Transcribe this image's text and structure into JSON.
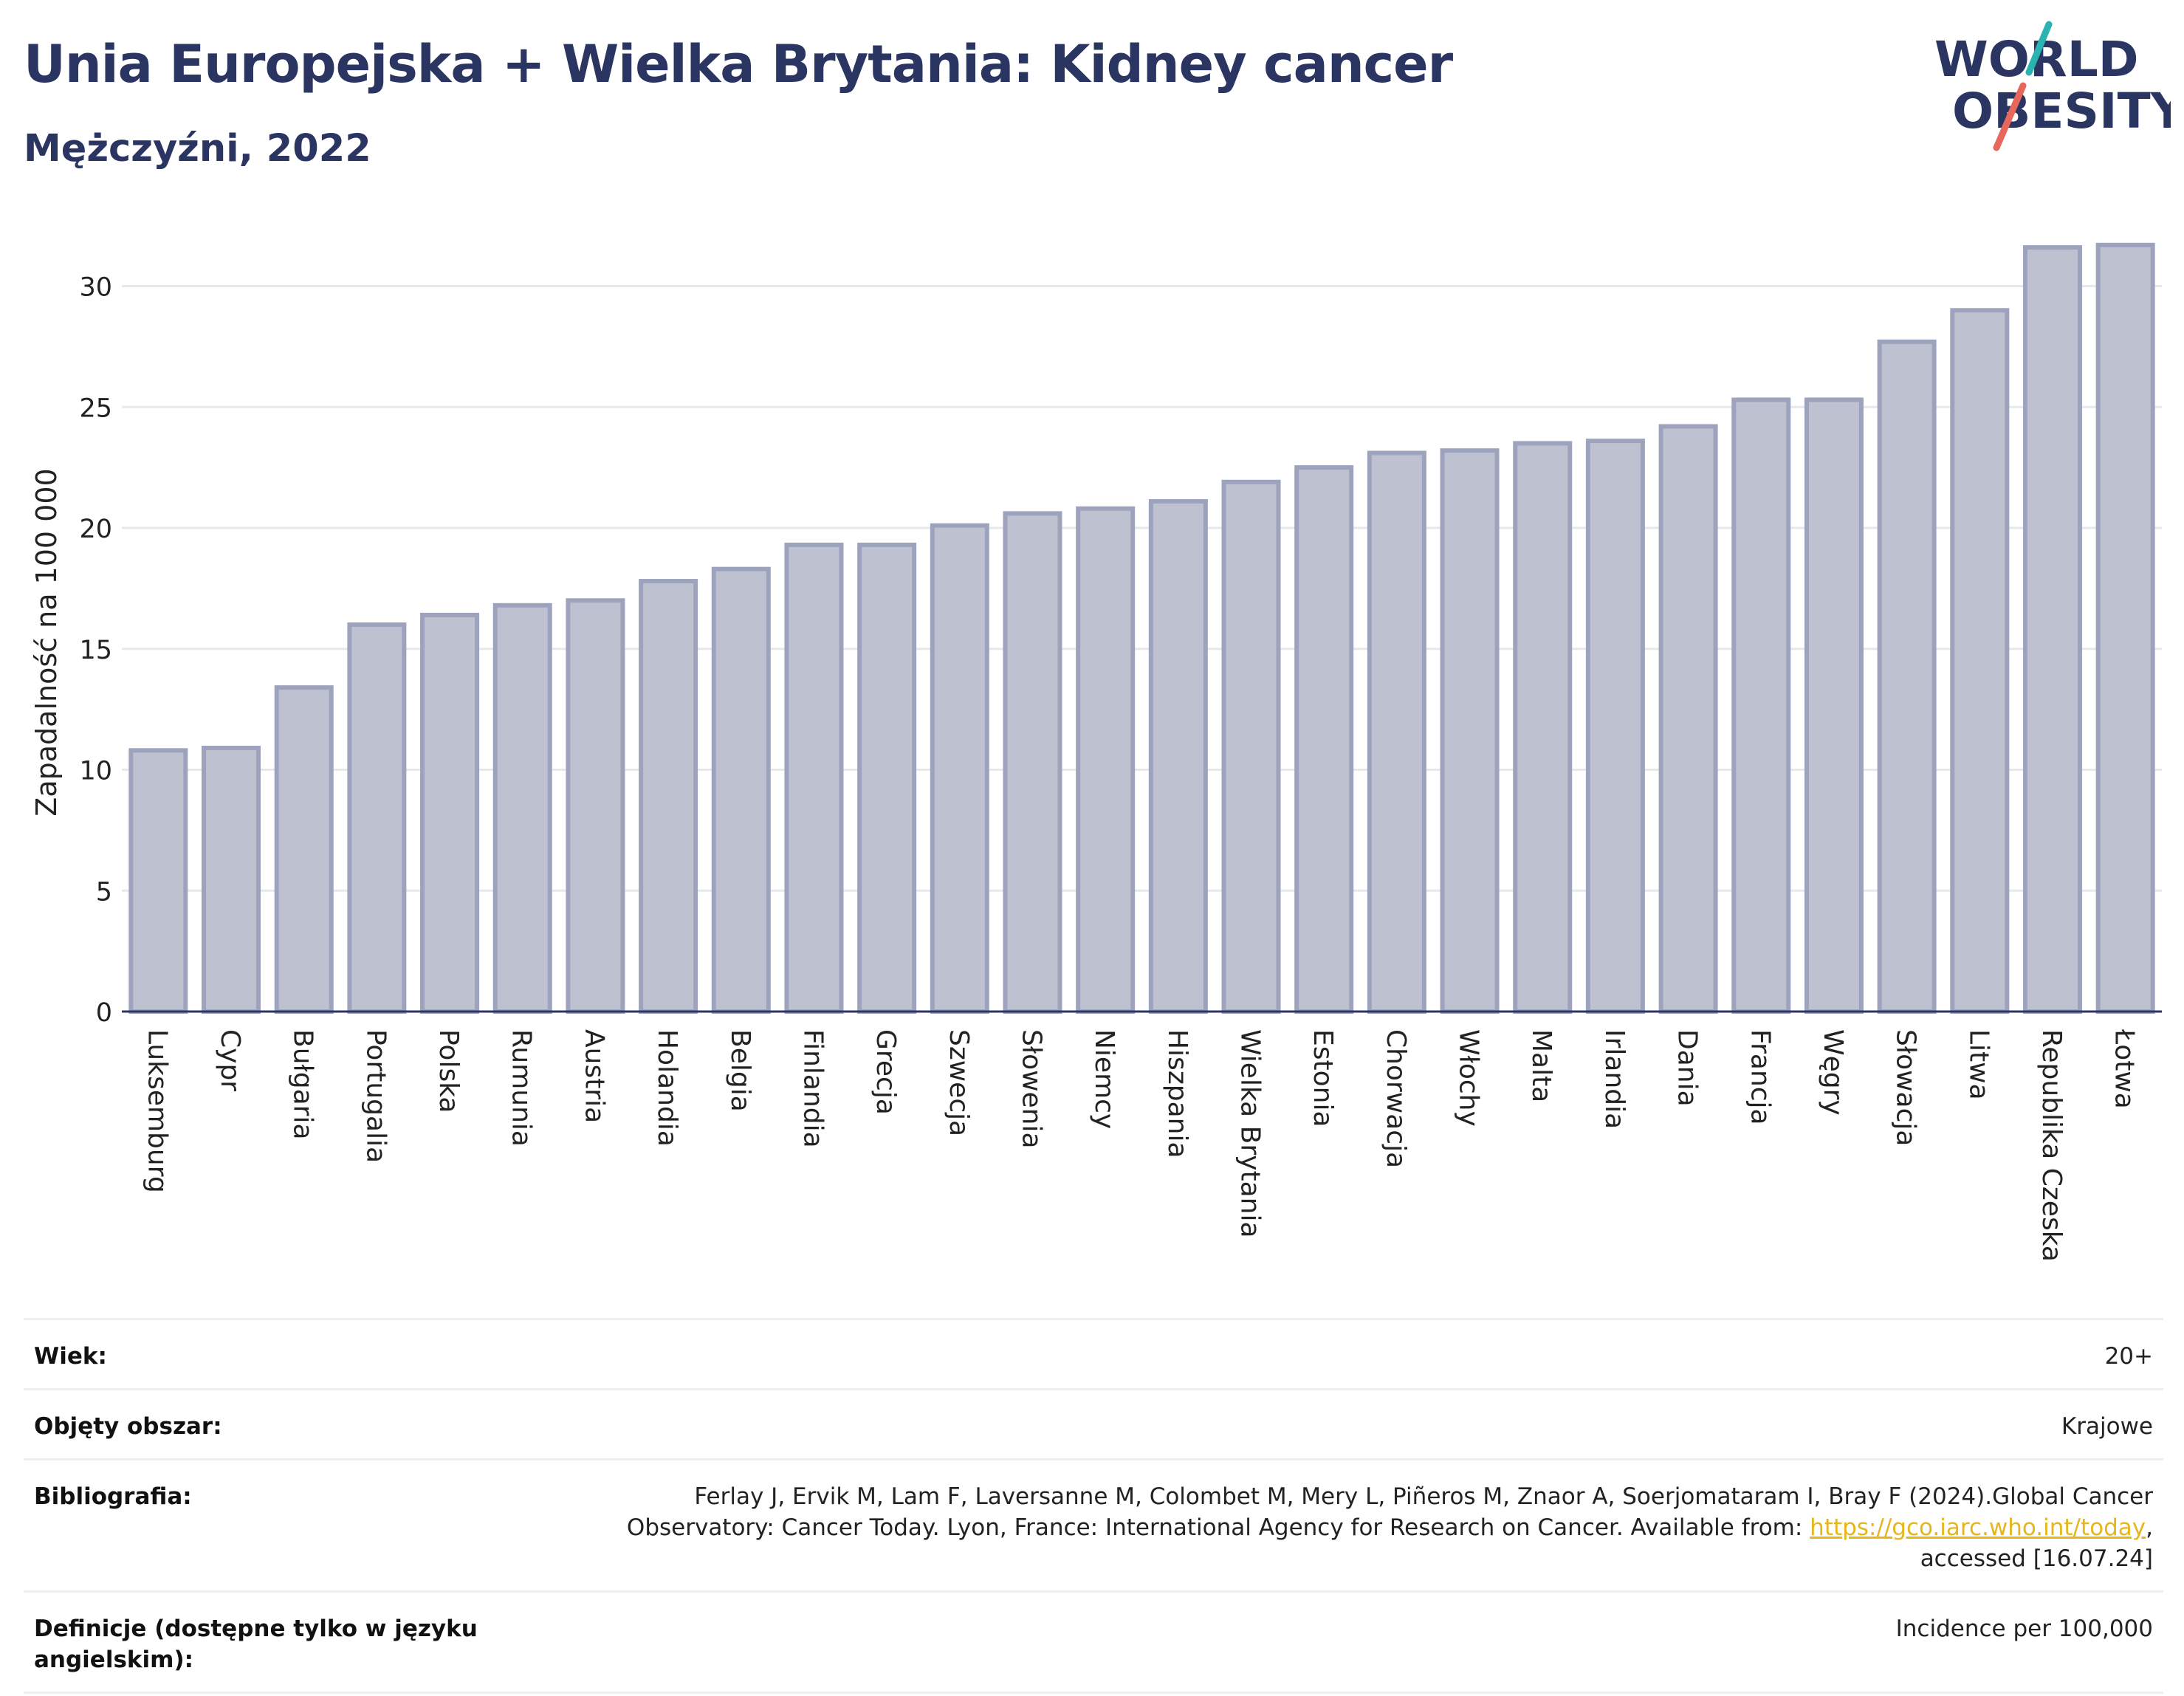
{
  "header": {
    "title": "Unia Europejska + Wielka Brytania: Kidney cancer",
    "subtitle": "Mężczyźni, 2022"
  },
  "logo": {
    "line1": "WORLD",
    "line2": "OBESITY",
    "colors": {
      "text": "#2b3561",
      "slash_top": "#2bb3b1",
      "slash_bottom": "#e8675b"
    }
  },
  "chart_data": {
    "type": "bar",
    "title": "Unia Europejska + Wielka Brytania: Kidney cancer",
    "subtitle": "Mężczyźni, 2022",
    "xlabel": "",
    "ylabel": "Zapadalność na 100 000",
    "ylim": [
      0,
      32
    ],
    "yticks": [
      0,
      5,
      10,
      15,
      20,
      25,
      30
    ],
    "grid": true,
    "bar_fill": "#bec1d0",
    "bar_stroke": "#9ea3bd",
    "categories": [
      "Luksemburg",
      "Cypr",
      "Bułgaria",
      "Portugalia",
      "Polska",
      "Rumunia",
      "Austria",
      "Holandia",
      "Belgia",
      "Finlandia",
      "Grecja",
      "Szwecja",
      "Słowenia",
      "Niemcy",
      "Hiszpania",
      "Wielka Brytania",
      "Estonia",
      "Chorwacja",
      "Włochy",
      "Malta",
      "Irlandia",
      "Dania",
      "Francja",
      "Węgry",
      "Słowacja",
      "Litwa",
      "Republika Czeska",
      "Łotwa"
    ],
    "values": [
      10.8,
      10.9,
      13.4,
      16.0,
      16.4,
      16.8,
      17.0,
      17.8,
      18.3,
      19.3,
      19.3,
      20.1,
      20.6,
      20.8,
      21.1,
      21.9,
      22.5,
      23.1,
      23.2,
      23.5,
      23.6,
      24.2,
      25.3,
      25.3,
      27.7,
      29.0,
      31.6,
      31.7
    ]
  },
  "meta": {
    "rows": [
      {
        "label": "Wiek:",
        "value": "20+"
      },
      {
        "label": "Objęty obszar:",
        "value": "Krajowe"
      },
      {
        "label": "Bibliografia:",
        "value_line1": "Ferlay J, Ervik M, Lam F, Laversanne M, Colombet M, Mery L, Piñeros M, Znaor A, Soerjomataram I, Bray F (2024).Global Cancer",
        "value_line2_pre": "Observatory: Cancer Today. Lyon, France: International Agency for Research on Cancer. Available from: ",
        "value_link": "https://gco.iarc.who.int/today",
        "value_line2_post": ",",
        "value_line3": "accessed [16.07.24]"
      },
      {
        "label": "Definicje (dostępne tylko w języku angielskim):",
        "value": "Incidence per 100,000"
      }
    ]
  }
}
